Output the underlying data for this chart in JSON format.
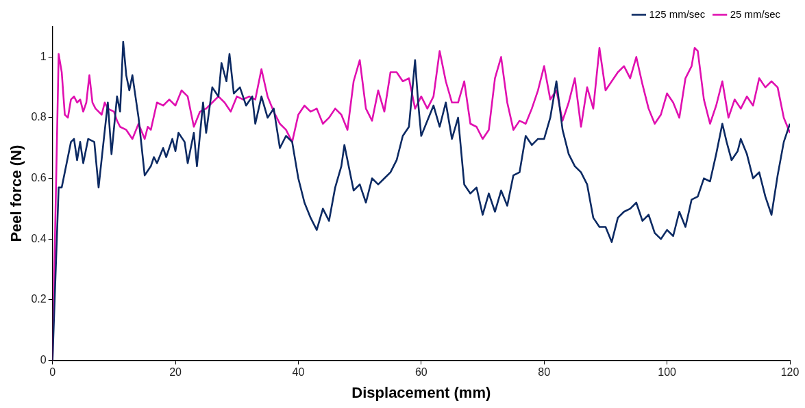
{
  "chart_data": {
    "type": "line",
    "xlabel": "Displacement (mm)",
    "ylabel": "Peel force (N)",
    "xlim": [
      0,
      120
    ],
    "xticks": [
      0,
      20,
      40,
      60,
      80,
      100,
      120
    ],
    "ylim": [
      0,
      1.1
    ],
    "yticks": [
      0,
      0.2,
      0.4,
      0.6,
      0.8,
      1
    ],
    "grid": false,
    "legend": "top right",
    "marker": "none",
    "line_style": "solid",
    "series": [
      {
        "name": "125 mm/sec",
        "color": "#0c2a63",
        "x": [
          0,
          1,
          1.5,
          2.5,
          3,
          3.5,
          4,
          4.5,
          5,
          5.8,
          6.8,
          7.5,
          8.3,
          9,
          9.6,
          10.5,
          11,
          11.5,
          12,
          12.5,
          13,
          14,
          15,
          16,
          16.5,
          17,
          18,
          18.5,
          19.5,
          20,
          20.5,
          21.5,
          22,
          23,
          23.5,
          24.5,
          25,
          26,
          27,
          27.5,
          28.3,
          28.8,
          29.5,
          30.5,
          31.5,
          32.5,
          33,
          34,
          35,
          36,
          37,
          38,
          39,
          40,
          41,
          42,
          43,
          44,
          45,
          46,
          47,
          47.5,
          48,
          49,
          50,
          51,
          52,
          53,
          54,
          55,
          56,
          57,
          58,
          59,
          59.5,
          60,
          61,
          62,
          63,
          64,
          65,
          66,
          67,
          68,
          69,
          70,
          71,
          72,
          73,
          74,
          75,
          76,
          77,
          78,
          79,
          80,
          81,
          82,
          83,
          84,
          85,
          86,
          87,
          88,
          89,
          90,
          91,
          92,
          93,
          94,
          95,
          96,
          97,
          98,
          99,
          100,
          101,
          102,
          103,
          104,
          105,
          106,
          107,
          108,
          109,
          109.7,
          110.5,
          111.5,
          112,
          113,
          114,
          115,
          116,
          117,
          118,
          119,
          120
        ],
        "values": [
          0,
          0.57,
          0.57,
          0.67,
          0.72,
          0.73,
          0.66,
          0.72,
          0.65,
          0.73,
          0.72,
          0.57,
          0.72,
          0.85,
          0.68,
          0.87,
          0.82,
          1.05,
          0.94,
          0.89,
          0.94,
          0.8,
          0.61,
          0.64,
          0.67,
          0.65,
          0.7,
          0.67,
          0.73,
          0.69,
          0.75,
          0.72,
          0.65,
          0.75,
          0.64,
          0.85,
          0.75,
          0.9,
          0.87,
          0.98,
          0.92,
          1.01,
          0.88,
          0.9,
          0.84,
          0.87,
          0.78,
          0.87,
          0.8,
          0.83,
          0.7,
          0.74,
          0.72,
          0.6,
          0.52,
          0.47,
          0.43,
          0.5,
          0.46,
          0.57,
          0.64,
          0.71,
          0.66,
          0.56,
          0.58,
          0.52,
          0.6,
          0.58,
          0.6,
          0.62,
          0.66,
          0.74,
          0.77,
          0.99,
          0.85,
          0.74,
          0.79,
          0.84,
          0.77,
          0.85,
          0.73,
          0.8,
          0.58,
          0.55,
          0.57,
          0.48,
          0.55,
          0.49,
          0.56,
          0.51,
          0.61,
          0.62,
          0.74,
          0.71,
          0.73,
          0.73,
          0.8,
          0.92,
          0.76,
          0.68,
          0.64,
          0.62,
          0.58,
          0.47,
          0.44,
          0.44,
          0.39,
          0.47,
          0.49,
          0.5,
          0.52,
          0.46,
          0.48,
          0.42,
          0.4,
          0.43,
          0.41,
          0.49,
          0.44,
          0.53,
          0.54,
          0.6,
          0.59,
          0.68,
          0.78,
          0.72,
          0.66,
          0.69,
          0.73,
          0.68,
          0.6,
          0.62,
          0.54,
          0.48,
          0.61,
          0.72,
          0.78
        ]
      },
      {
        "name": "25 mm/sec",
        "color": "#e010b0",
        "x": [
          0,
          0.5,
          1,
          1.5,
          2,
          2.5,
          3,
          3.5,
          4,
          4.5,
          5,
          5.5,
          6,
          6.5,
          7,
          8,
          8.5,
          9,
          10,
          10.5,
          11,
          12,
          13,
          14,
          15,
          15.5,
          16,
          17,
          18,
          19,
          20,
          21,
          22,
          23,
          24,
          25,
          26,
          27,
          28,
          29,
          30,
          31,
          32,
          33,
          34,
          35,
          36,
          37,
          38,
          39,
          40,
          41,
          42,
          43,
          44,
          45,
          46,
          47,
          48,
          49,
          50,
          51,
          52,
          53,
          54,
          55,
          56,
          57,
          58,
          59,
          60,
          61,
          62,
          63,
          64,
          65,
          66,
          67,
          68,
          69,
          70,
          71,
          72,
          73,
          74,
          75,
          76,
          77,
          78,
          79,
          80,
          81,
          82,
          83,
          84,
          85,
          86,
          87,
          88,
          89,
          90,
          91,
          92,
          93,
          94,
          95,
          96,
          97,
          98,
          99,
          100,
          101,
          102,
          103,
          104,
          104.5,
          105,
          106,
          107,
          108,
          109,
          110,
          111,
          112,
          113,
          114,
          115,
          116,
          117,
          118,
          119,
          120
        ],
        "values": [
          0,
          0.5,
          1.01,
          0.95,
          0.81,
          0.8,
          0.86,
          0.87,
          0.85,
          0.86,
          0.82,
          0.85,
          0.94,
          0.85,
          0.83,
          0.81,
          0.85,
          0.83,
          0.82,
          0.79,
          0.77,
          0.76,
          0.73,
          0.78,
          0.73,
          0.77,
          0.76,
          0.85,
          0.84,
          0.86,
          0.84,
          0.89,
          0.87,
          0.77,
          0.82,
          0.83,
          0.85,
          0.87,
          0.85,
          0.82,
          0.87,
          0.86,
          0.87,
          0.86,
          0.96,
          0.87,
          0.82,
          0.78,
          0.76,
          0.72,
          0.81,
          0.84,
          0.82,
          0.83,
          0.78,
          0.8,
          0.83,
          0.81,
          0.76,
          0.92,
          0.99,
          0.83,
          0.79,
          0.89,
          0.82,
          0.95,
          0.95,
          0.92,
          0.93,
          0.83,
          0.87,
          0.83,
          0.87,
          1.02,
          0.92,
          0.85,
          0.85,
          0.92,
          0.78,
          0.77,
          0.73,
          0.76,
          0.93,
          1,
          0.85,
          0.76,
          0.79,
          0.78,
          0.83,
          0.89,
          0.97,
          0.86,
          0.89,
          0.79,
          0.85,
          0.93,
          0.77,
          0.9,
          0.83,
          1.03,
          0.89,
          0.92,
          0.95,
          0.97,
          0.93,
          1,
          0.91,
          0.83,
          0.78,
          0.81,
          0.88,
          0.85,
          0.8,
          0.93,
          0.97,
          1.03,
          1.02,
          0.86,
          0.78,
          0.84,
          0.92,
          0.8,
          0.86,
          0.83,
          0.87,
          0.84,
          0.93,
          0.9,
          0.92,
          0.9,
          0.8,
          0.75
        ]
      }
    ]
  }
}
